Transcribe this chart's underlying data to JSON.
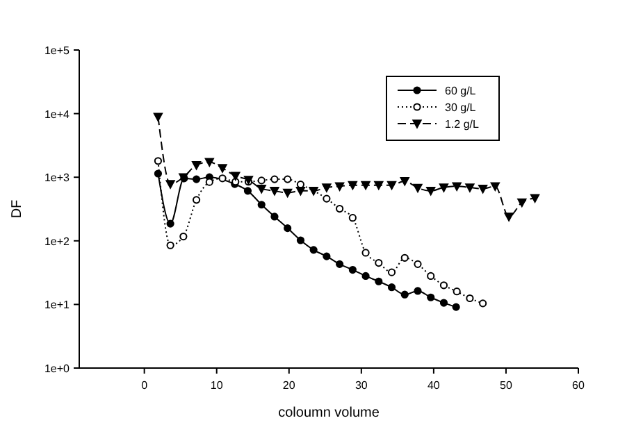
{
  "chart_data": {
    "type": "line",
    "xlabel": "coloumn volume",
    "ylabel": "DF",
    "log": "y",
    "xlim": [
      -9,
      60
    ],
    "ylim": [
      1,
      100000
    ],
    "xticks": [
      0,
      10,
      20,
      30,
      40,
      50,
      60
    ],
    "yticks": [
      {
        "value": 1,
        "label": "1e+0"
      },
      {
        "value": 10,
        "label": "1e+1"
      },
      {
        "value": 100,
        "label": "1e+2"
      },
      {
        "value": 1000,
        "label": "1e+3"
      },
      {
        "value": 10000,
        "label": "1e+4"
      },
      {
        "value": 100000,
        "label": "1e+5"
      }
    ],
    "grid": false,
    "legend": "top right",
    "series": [
      {
        "name": "60 g/L",
        "color": "#000000",
        "marker": "circle",
        "line_style": "solid",
        "x": [
          1.9,
          3.6,
          5.5,
          7.2,
          9.0,
          12.5,
          14.3,
          16.2,
          18.0,
          19.8,
          21.6,
          23.4,
          25.2,
          27.0,
          28.8,
          30.6,
          32.4,
          34.2,
          36.0,
          37.8,
          39.6,
          41.4,
          43.1
        ],
        "values": [
          1140,
          186,
          960,
          930,
          1000,
          780,
          610,
          370,
          240,
          158,
          102,
          72,
          57,
          43,
          35,
          28,
          23,
          18.6,
          14.3,
          16.3,
          12.9,
          10.6,
          9.1
        ]
      },
      {
        "name": "30 g/L",
        "color": "#000000",
        "marker": "circle",
        "line_style": "dotted",
        "x": [
          1.9,
          3.6,
          5.4,
          7.2,
          9.0,
          10.8,
          12.6,
          14.4,
          16.2,
          18.0,
          19.8,
          21.6,
          25.2,
          27.0,
          28.8,
          30.6,
          32.4,
          34.2,
          36.0,
          37.8,
          39.6,
          41.4,
          43.2,
          45.0,
          46.8
        ],
        "values": [
          1800,
          85,
          117,
          440,
          840,
          960,
          850,
          850,
          890,
          930,
          930,
          770,
          460,
          320,
          230,
          65,
          45,
          32,
          54,
          43,
          28,
          20,
          16,
          12.5,
          10.4
        ]
      },
      {
        "name": "1.2 g/L",
        "color": "#000000",
        "marker": "triangle",
        "line_style": "dashed",
        "x": [
          1.9,
          3.6,
          5.4,
          7.2,
          9.0,
          10.8,
          12.6,
          14.4,
          16.2,
          18.0,
          19.8,
          21.6,
          23.4,
          25.2,
          27.0,
          28.8,
          30.6,
          32.4,
          34.2,
          36.0,
          37.8,
          39.6,
          41.4,
          43.2,
          45.0,
          46.8,
          48.5,
          50.4,
          52.2,
          54.0
        ],
        "values": [
          8900,
          780,
          1000,
          1550,
          1730,
          1390,
          1050,
          910,
          660,
          610,
          570,
          610,
          610,
          690,
          720,
          750,
          750,
          750,
          750,
          870,
          680,
          610,
          690,
          720,
          690,
          660,
          720,
          240,
          400,
          470
        ]
      }
    ]
  }
}
